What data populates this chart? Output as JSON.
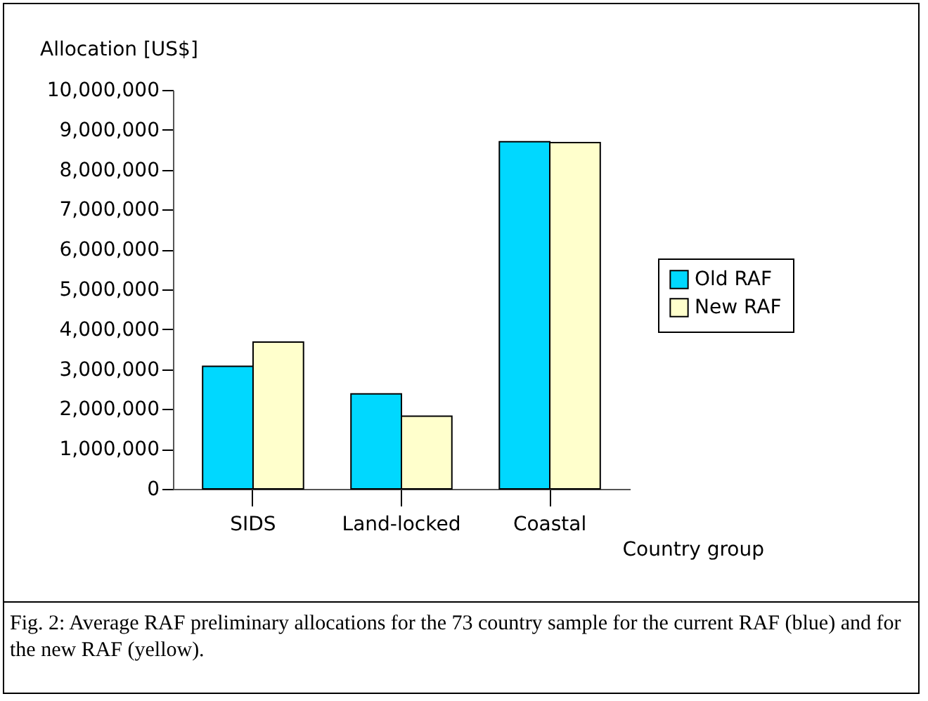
{
  "chart_data": {
    "type": "bar",
    "xlabel": "Country group",
    "ylabel": "Allocation [US$]",
    "categories": [
      "SIDS",
      "Land-locked",
      "Coastal"
    ],
    "series": [
      {
        "name": "Old RAF",
        "color": "#00d8ff",
        "values": [
          3070000,
          2380000,
          8700000
        ]
      },
      {
        "name": "New RAF",
        "color": "#ffffcc",
        "values": [
          3680000,
          1820000,
          8680000
        ]
      }
    ],
    "ylim": [
      0,
      10000000
    ],
    "yticks": [
      0,
      {
        "value": 1000000,
        "label": "1,000,000"
      },
      {
        "value": 2000000,
        "label": "2,000,000"
      },
      {
        "value": 3000000,
        "label": "3,000,000"
      },
      {
        "value": 4000000,
        "label": "4,000,000"
      },
      {
        "value": 5000000,
        "label": "5,000,000"
      },
      {
        "value": 6000000,
        "label": "6,000,000"
      },
      {
        "value": 7000000,
        "label": "7,000,000"
      },
      {
        "value": 8000000,
        "label": "8,000,000"
      },
      {
        "value": 9000000,
        "label": "9,000,000"
      },
      {
        "value": 10000000,
        "label": "10,000,000"
      }
    ],
    "grid": false,
    "legend": "right",
    "annotations": [
      "Fig. 2: Average RAF preliminary allocations for the 73 country sample for the current RAF (blue) and for the new RAF (yellow)."
    ]
  }
}
